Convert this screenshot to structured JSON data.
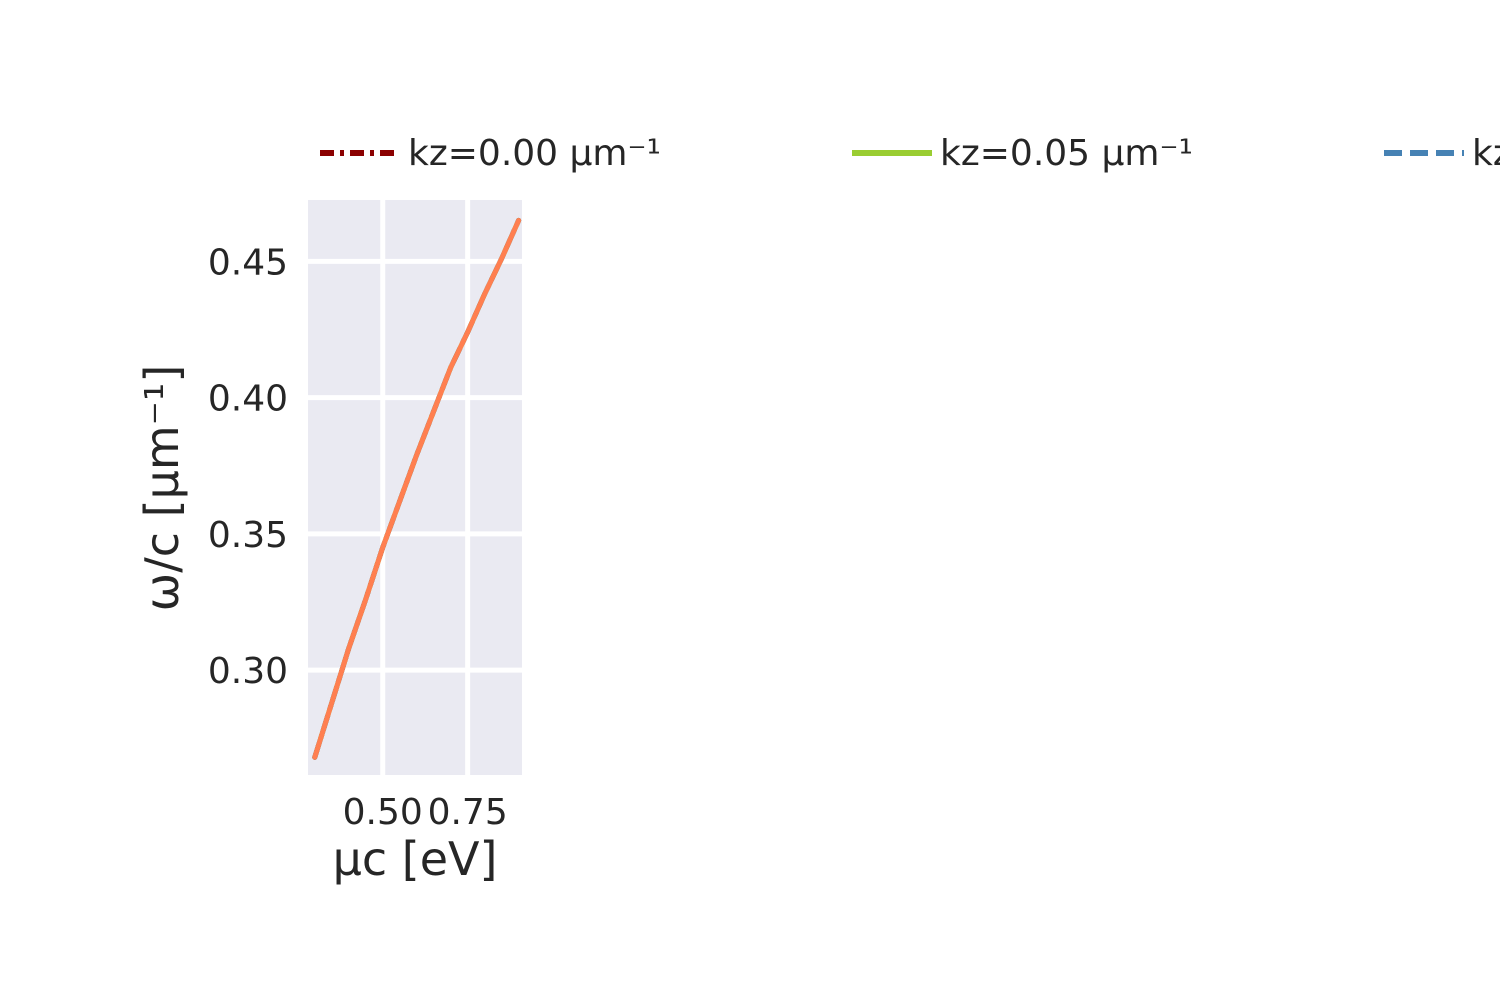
{
  "chart_data": {
    "type": "line",
    "xlabel": "μc [eV]",
    "ylabel": "ω/c [μm⁻¹]",
    "xlim": [
      0.28,
      0.91
    ],
    "ylim": [
      0.2615,
      0.4725
    ],
    "xticks": [
      0.5,
      0.75
    ],
    "xtick_labels": [
      "0.50",
      "0.75"
    ],
    "yticks": [
      0.3,
      0.35,
      0.4,
      0.45
    ],
    "ytick_labels": [
      "0.30",
      "0.35",
      "0.40",
      "0.45"
    ],
    "grid": true,
    "background": "#eaeaf2",
    "legend_position": "top",
    "legend": [
      {
        "label": "kz=0.00 μm⁻¹",
        "color": "#8b0000",
        "style": "dashdot"
      },
      {
        "label": "kz=0.05 μm⁻¹",
        "color": "#9acd32",
        "style": "solid"
      },
      {
        "label": "kz",
        "color": "#4682b4",
        "style": "dashed"
      }
    ],
    "x": [
      0.3,
      0.35,
      0.4,
      0.45,
      0.5,
      0.55,
      0.6,
      0.65,
      0.7,
      0.75,
      0.8,
      0.85,
      0.9
    ],
    "series": [
      {
        "name": "kz=0.00 μm⁻¹",
        "color": "#8b0000",
        "style": "dashdot",
        "values": [
          0.268,
          0.288,
          0.308,
          0.326,
          0.345,
          0.362,
          0.379,
          0.395,
          0.411,
          0.424,
          0.438,
          0.451,
          0.465
        ]
      },
      {
        "name": "kz=0.05 μm⁻¹",
        "color": "#9acd32",
        "style": "solid",
        "values": [
          0.268,
          0.288,
          0.308,
          0.326,
          0.345,
          0.362,
          0.379,
          0.395,
          0.411,
          0.424,
          0.438,
          0.451,
          0.465
        ]
      },
      {
        "name": "kz",
        "color": "#4682b4",
        "style": "dashed",
        "values": [
          0.268,
          0.288,
          0.308,
          0.326,
          0.345,
          0.362,
          0.379,
          0.395,
          0.411,
          0.424,
          0.438,
          0.451,
          0.465
        ]
      },
      {
        "color": "#ff7f50",
        "style": "solid",
        "values": [
          0.268,
          0.288,
          0.308,
          0.326,
          0.345,
          0.362,
          0.379,
          0.395,
          0.411,
          0.424,
          0.438,
          0.451,
          0.465
        ]
      }
    ]
  }
}
